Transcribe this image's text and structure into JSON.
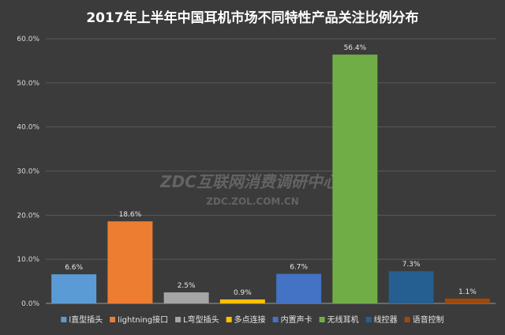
{
  "chart_data": {
    "type": "bar",
    "title": "2017年上半年中国耳机市场不同特性产品关注比例分布",
    "categories": [
      "l直型插头",
      "lightning接口",
      "L弯型插头",
      "多点连接",
      "内置声卡",
      "无线耳机",
      "线控器",
      "语音控制"
    ],
    "values": [
      6.6,
      18.6,
      2.5,
      0.9,
      6.7,
      56.4,
      7.3,
      1.1
    ],
    "value_labels": [
      "6.6%",
      "18.6%",
      "2.5%",
      "0.9%",
      "6.7%",
      "56.4%",
      "7.3%",
      "1.1%"
    ],
    "colors": [
      "#5b9bd5",
      "#ed7d31",
      "#a5a5a5",
      "#ffc000",
      "#4472c4",
      "#70ad47",
      "#255e91",
      "#9e480e"
    ],
    "ylim": [
      0,
      60
    ],
    "yticks": [
      0,
      10,
      20,
      30,
      40,
      50,
      60
    ],
    "ytick_labels": [
      "0.0%",
      "10.0%",
      "20.0%",
      "30.0%",
      "40.0%",
      "50.0%",
      "60.0%"
    ],
    "grid": true,
    "legend_position": "bottom",
    "xlabel": "",
    "ylabel": ""
  },
  "watermark": {
    "line1": "ZDC互联网消费调研中心",
    "line2": "ZDC.ZOL.COM.CN"
  }
}
